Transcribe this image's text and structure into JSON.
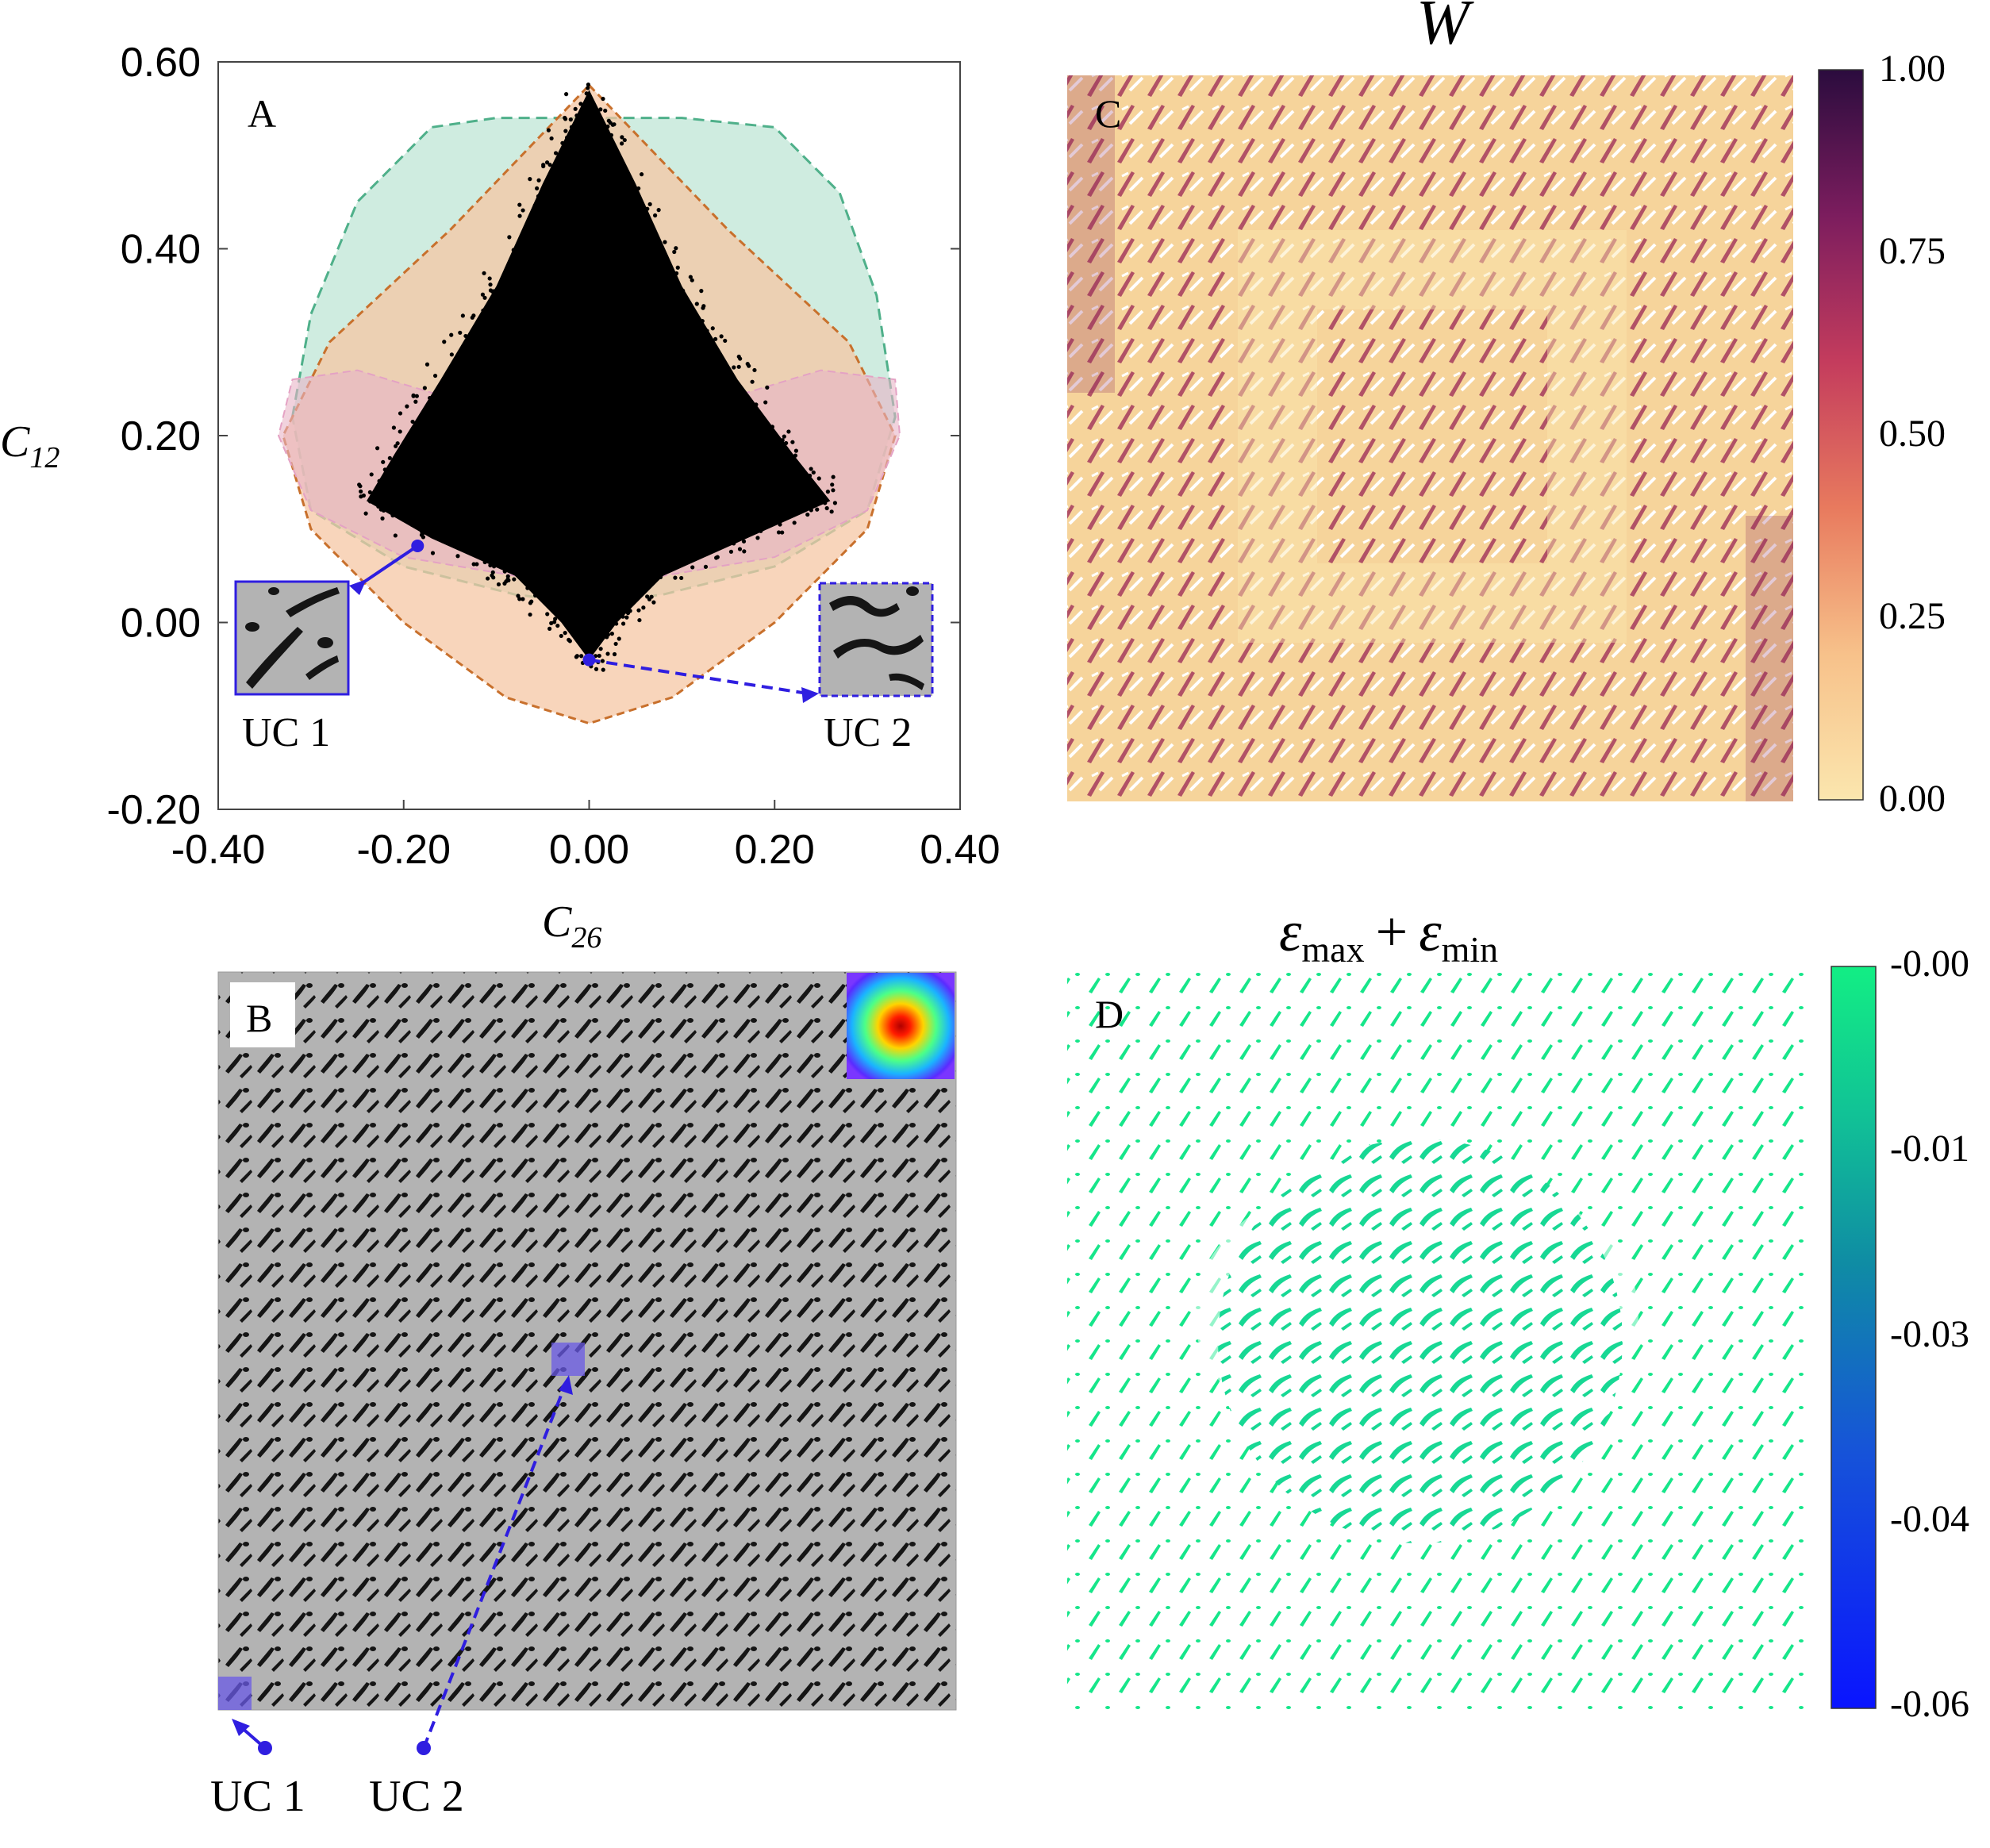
{
  "panels": {
    "a": {
      "label": "A",
      "xlabel": "C",
      "xlabel_sub": "26",
      "ylabel": "C",
      "ylabel_sub": "12",
      "uc1_label": "UC 1",
      "uc2_label": "UC 2"
    },
    "b": {
      "label": "B",
      "uc1_label": "UC 1",
      "uc2_label": "UC 2"
    },
    "c": {
      "label": "C",
      "title": "W",
      "colorbar_ticks": [
        "1.00",
        "0.75",
        "0.50",
        "0.25",
        "0.00"
      ]
    },
    "d": {
      "label": "D",
      "title_eps": "ε",
      "title_sub1": "max",
      "title_plus": "+",
      "title_sub2": "min",
      "colorbar_ticks": [
        "-0.00",
        "-0.01",
        "-0.03",
        "-0.04",
        "-0.06"
      ]
    }
  },
  "colors": {
    "region_green": "#bfe6d6",
    "region_orange": "#f5c7a4",
    "region_pink": "#e7b4c6",
    "points": "#000000",
    "uc_blue": "#2f1ee0",
    "w_low": "#fbe6ae",
    "w_high": "#2b0c3e",
    "eps_low": "#0a14ff",
    "eps_high": "#12ee84",
    "microstructure_gray": "#b3b3b3"
  },
  "chart_data": {
    "type": "scatter",
    "title": "",
    "xlabel": "C26",
    "ylabel": "C12",
    "xlim": [
      -0.4,
      0.4
    ],
    "ylim": [
      -0.2,
      0.6
    ],
    "xticks": [
      "-0.40",
      "-0.20",
      "0.00",
      "0.20",
      "0.40"
    ],
    "yticks": [
      "0.60",
      "0.40",
      "0.20",
      "0.00",
      "-0.20"
    ],
    "regions": [
      {
        "name": "green-hull",
        "points": [
          [
            -0.32,
            0.22
          ],
          [
            -0.3,
            0.33
          ],
          [
            -0.25,
            0.45
          ],
          [
            -0.17,
            0.53
          ],
          [
            -0.1,
            0.54
          ],
          [
            0.1,
            0.54
          ],
          [
            0.2,
            0.53
          ],
          [
            0.27,
            0.46
          ],
          [
            0.31,
            0.35
          ],
          [
            0.33,
            0.22
          ],
          [
            0.3,
            0.12
          ],
          [
            0.2,
            0.06
          ],
          [
            0.08,
            0.03
          ],
          [
            0.0,
            0.02
          ],
          [
            -0.08,
            0.03
          ],
          [
            -0.2,
            0.06
          ],
          [
            -0.3,
            0.12
          ]
        ]
      },
      {
        "name": "orange-hull",
        "points": [
          [
            0.0,
            0.575
          ],
          [
            0.15,
            0.42
          ],
          [
            0.28,
            0.3
          ],
          [
            0.33,
            0.2
          ],
          [
            0.3,
            0.1
          ],
          [
            0.2,
            0.0
          ],
          [
            0.09,
            -0.08
          ],
          [
            0.0,
            -0.108
          ],
          [
            -0.09,
            -0.08
          ],
          [
            -0.2,
            0.0
          ],
          [
            -0.3,
            0.1
          ],
          [
            -0.33,
            0.2
          ],
          [
            -0.28,
            0.3
          ],
          [
            -0.15,
            0.42
          ]
        ]
      },
      {
        "name": "pink-hull",
        "points": [
          [
            -0.32,
            0.26
          ],
          [
            -0.25,
            0.27
          ],
          [
            -0.15,
            0.24
          ],
          [
            -0.05,
            0.2
          ],
          [
            0.05,
            0.2
          ],
          [
            0.15,
            0.24
          ],
          [
            0.25,
            0.27
          ],
          [
            0.33,
            0.26
          ],
          [
            0.335,
            0.2
          ],
          [
            0.3,
            0.12
          ],
          [
            0.2,
            0.07
          ],
          [
            0.05,
            0.045
          ],
          [
            0.0,
            0.04
          ],
          [
            -0.05,
            0.045
          ],
          [
            -0.2,
            0.07
          ],
          [
            -0.3,
            0.12
          ],
          [
            -0.335,
            0.2
          ]
        ]
      }
    ],
    "point_cloud_outline": [
      [
        0.0,
        0.57
      ],
      [
        0.05,
        0.47
      ],
      [
        0.1,
        0.36
      ],
      [
        0.16,
        0.26
      ],
      [
        0.22,
        0.18
      ],
      [
        0.26,
        0.13
      ],
      [
        0.17,
        0.09
      ],
      [
        0.08,
        0.05
      ],
      [
        0.03,
        0.0
      ],
      [
        0.0,
        -0.04
      ],
      [
        -0.03,
        0.0
      ],
      [
        -0.08,
        0.05
      ],
      [
        -0.17,
        0.09
      ],
      [
        -0.24,
        0.13
      ],
      [
        -0.21,
        0.18
      ],
      [
        -0.16,
        0.26
      ],
      [
        -0.1,
        0.36
      ],
      [
        -0.05,
        0.47
      ]
    ],
    "annotations": [
      {
        "label": "UC 1",
        "point": [
          -0.185,
          0.082
        ]
      },
      {
        "label": "UC 2",
        "point": [
          0.0,
          -0.04
        ]
      }
    ]
  }
}
